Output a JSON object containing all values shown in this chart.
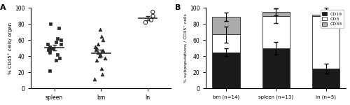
{
  "panel_A": {
    "title": "A",
    "ylabel": "% CD45⁺ cells/ organ",
    "xtick_labels": [
      "spleen",
      "bm",
      "ln"
    ],
    "ylim": [
      0,
      100
    ],
    "yticks": [
      0,
      20,
      40,
      60,
      80,
      100
    ],
    "spleen_data": [
      50,
      55,
      62,
      58,
      47,
      52,
      48,
      38,
      35,
      42,
      55,
      60,
      75,
      80,
      22,
      45,
      50
    ],
    "spleen_mean": 51,
    "spleen_sem": 3.5,
    "bm_data": [
      65,
      73,
      55,
      60,
      48,
      45,
      40,
      42,
      38,
      35,
      25,
      18,
      12,
      47,
      50,
      52
    ],
    "bm_mean": 44,
    "bm_sem": 4.5,
    "ln_data": [
      95,
      90,
      85,
      82
    ],
    "ln_mean": 87,
    "ln_sem": 2.5,
    "scatter_color": "#2b2b2b",
    "mean_line_color": "#2b2b2b",
    "background_color": "#ffffff"
  },
  "panel_B": {
    "title": "B",
    "ylabel": "% subpopulations / CD45⁺ cells",
    "categories": [
      "bm (n=14)",
      "spleen (n=13)",
      "ln (n=5)"
    ],
    "CD19_means": [
      45,
      50,
      25
    ],
    "CD3_means": [
      22,
      40,
      65
    ],
    "CD33_means": [
      22,
      5,
      2
    ],
    "CD19_errors": [
      5,
      8,
      6
    ],
    "CD3_errors": [
      10,
      9,
      10
    ],
    "CD33_errors": [
      8,
      2,
      2
    ],
    "total_errors": [
      5,
      4,
      6
    ],
    "ylim": [
      0,
      100
    ],
    "yticks": [
      0,
      20,
      40,
      60,
      80,
      100
    ],
    "color_CD19": "#1a1a1a",
    "color_CD3": "#ffffff",
    "color_CD33": "#aaaaaa",
    "bar_edgecolor": "#2b2b2b",
    "bar_width": 0.55,
    "background_color": "#ffffff"
  }
}
